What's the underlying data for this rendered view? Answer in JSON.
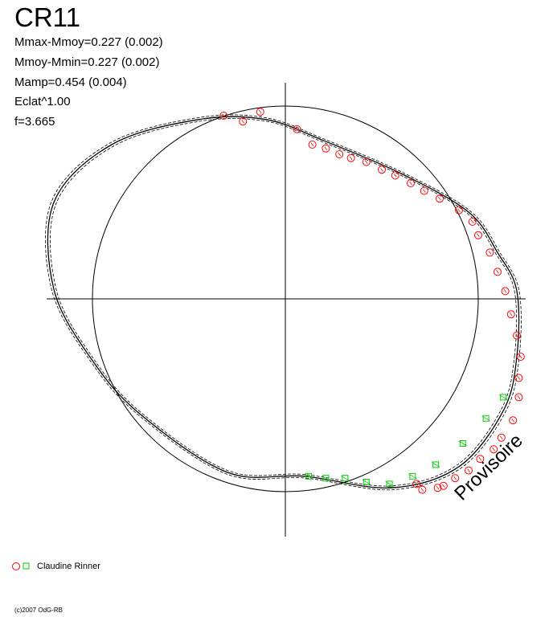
{
  "chart_data": {
    "type": "scatter",
    "title": "CR11",
    "stats": [
      "Mmax-Mmoy=0.227 (0.002)",
      "Mmoy-Mmin=0.227 (0.002)",
      "Mamp=0.454 (0.004)",
      "Eclat^1.00",
      "f=3.665"
    ],
    "xlim": [
      -1.25,
      1.25
    ],
    "ylim": [
      -1.25,
      1.25
    ],
    "reference_circle_radius": 1.0,
    "series": [
      {
        "name": "Claudine Rinner",
        "marker": "circle",
        "color": "#ff0000",
        "x": [
          -0.32,
          -0.22,
          -0.13,
          0.06,
          0.14,
          0.21,
          0.28,
          0.34,
          0.42,
          0.5,
          0.57,
          0.65,
          0.72,
          0.8,
          0.9,
          0.97,
          1.0,
          1.06,
          1.1,
          1.14,
          1.17,
          1.2,
          1.22,
          1.21,
          1.21,
          1.18,
          1.12,
          1.08,
          1.01,
          0.95,
          0.88,
          0.82,
          0.79,
          0.71,
          0.68
        ],
        "y": [
          0.95,
          0.92,
          0.97,
          0.88,
          0.8,
          0.78,
          0.75,
          0.73,
          0.71,
          0.67,
          0.64,
          0.6,
          0.56,
          0.52,
          0.46,
          0.4,
          0.33,
          0.24,
          0.14,
          0.04,
          -0.08,
          -0.19,
          -0.3,
          -0.41,
          -0.51,
          -0.63,
          -0.72,
          -0.78,
          -0.83,
          -0.89,
          -0.93,
          -0.97,
          -0.98,
          -0.99,
          -0.96
        ]
      },
      {
        "name": "Claudine Rinner",
        "marker": "square",
        "color": "#00cc00",
        "x": [
          0.12,
          0.21,
          0.31,
          0.42,
          0.54,
          0.66,
          0.78,
          0.92,
          1.04,
          1.13
        ],
        "y": [
          -0.92,
          -0.93,
          -0.93,
          -0.95,
          -0.96,
          -0.92,
          -0.86,
          -0.75,
          -0.62,
          -0.51
        ]
      }
    ],
    "legend": {
      "label": "Claudine Rinner",
      "placement": "bottom-left"
    },
    "grid": false,
    "watermark": "Provisoire",
    "copyright": "(c)2007 OdG-RB"
  }
}
